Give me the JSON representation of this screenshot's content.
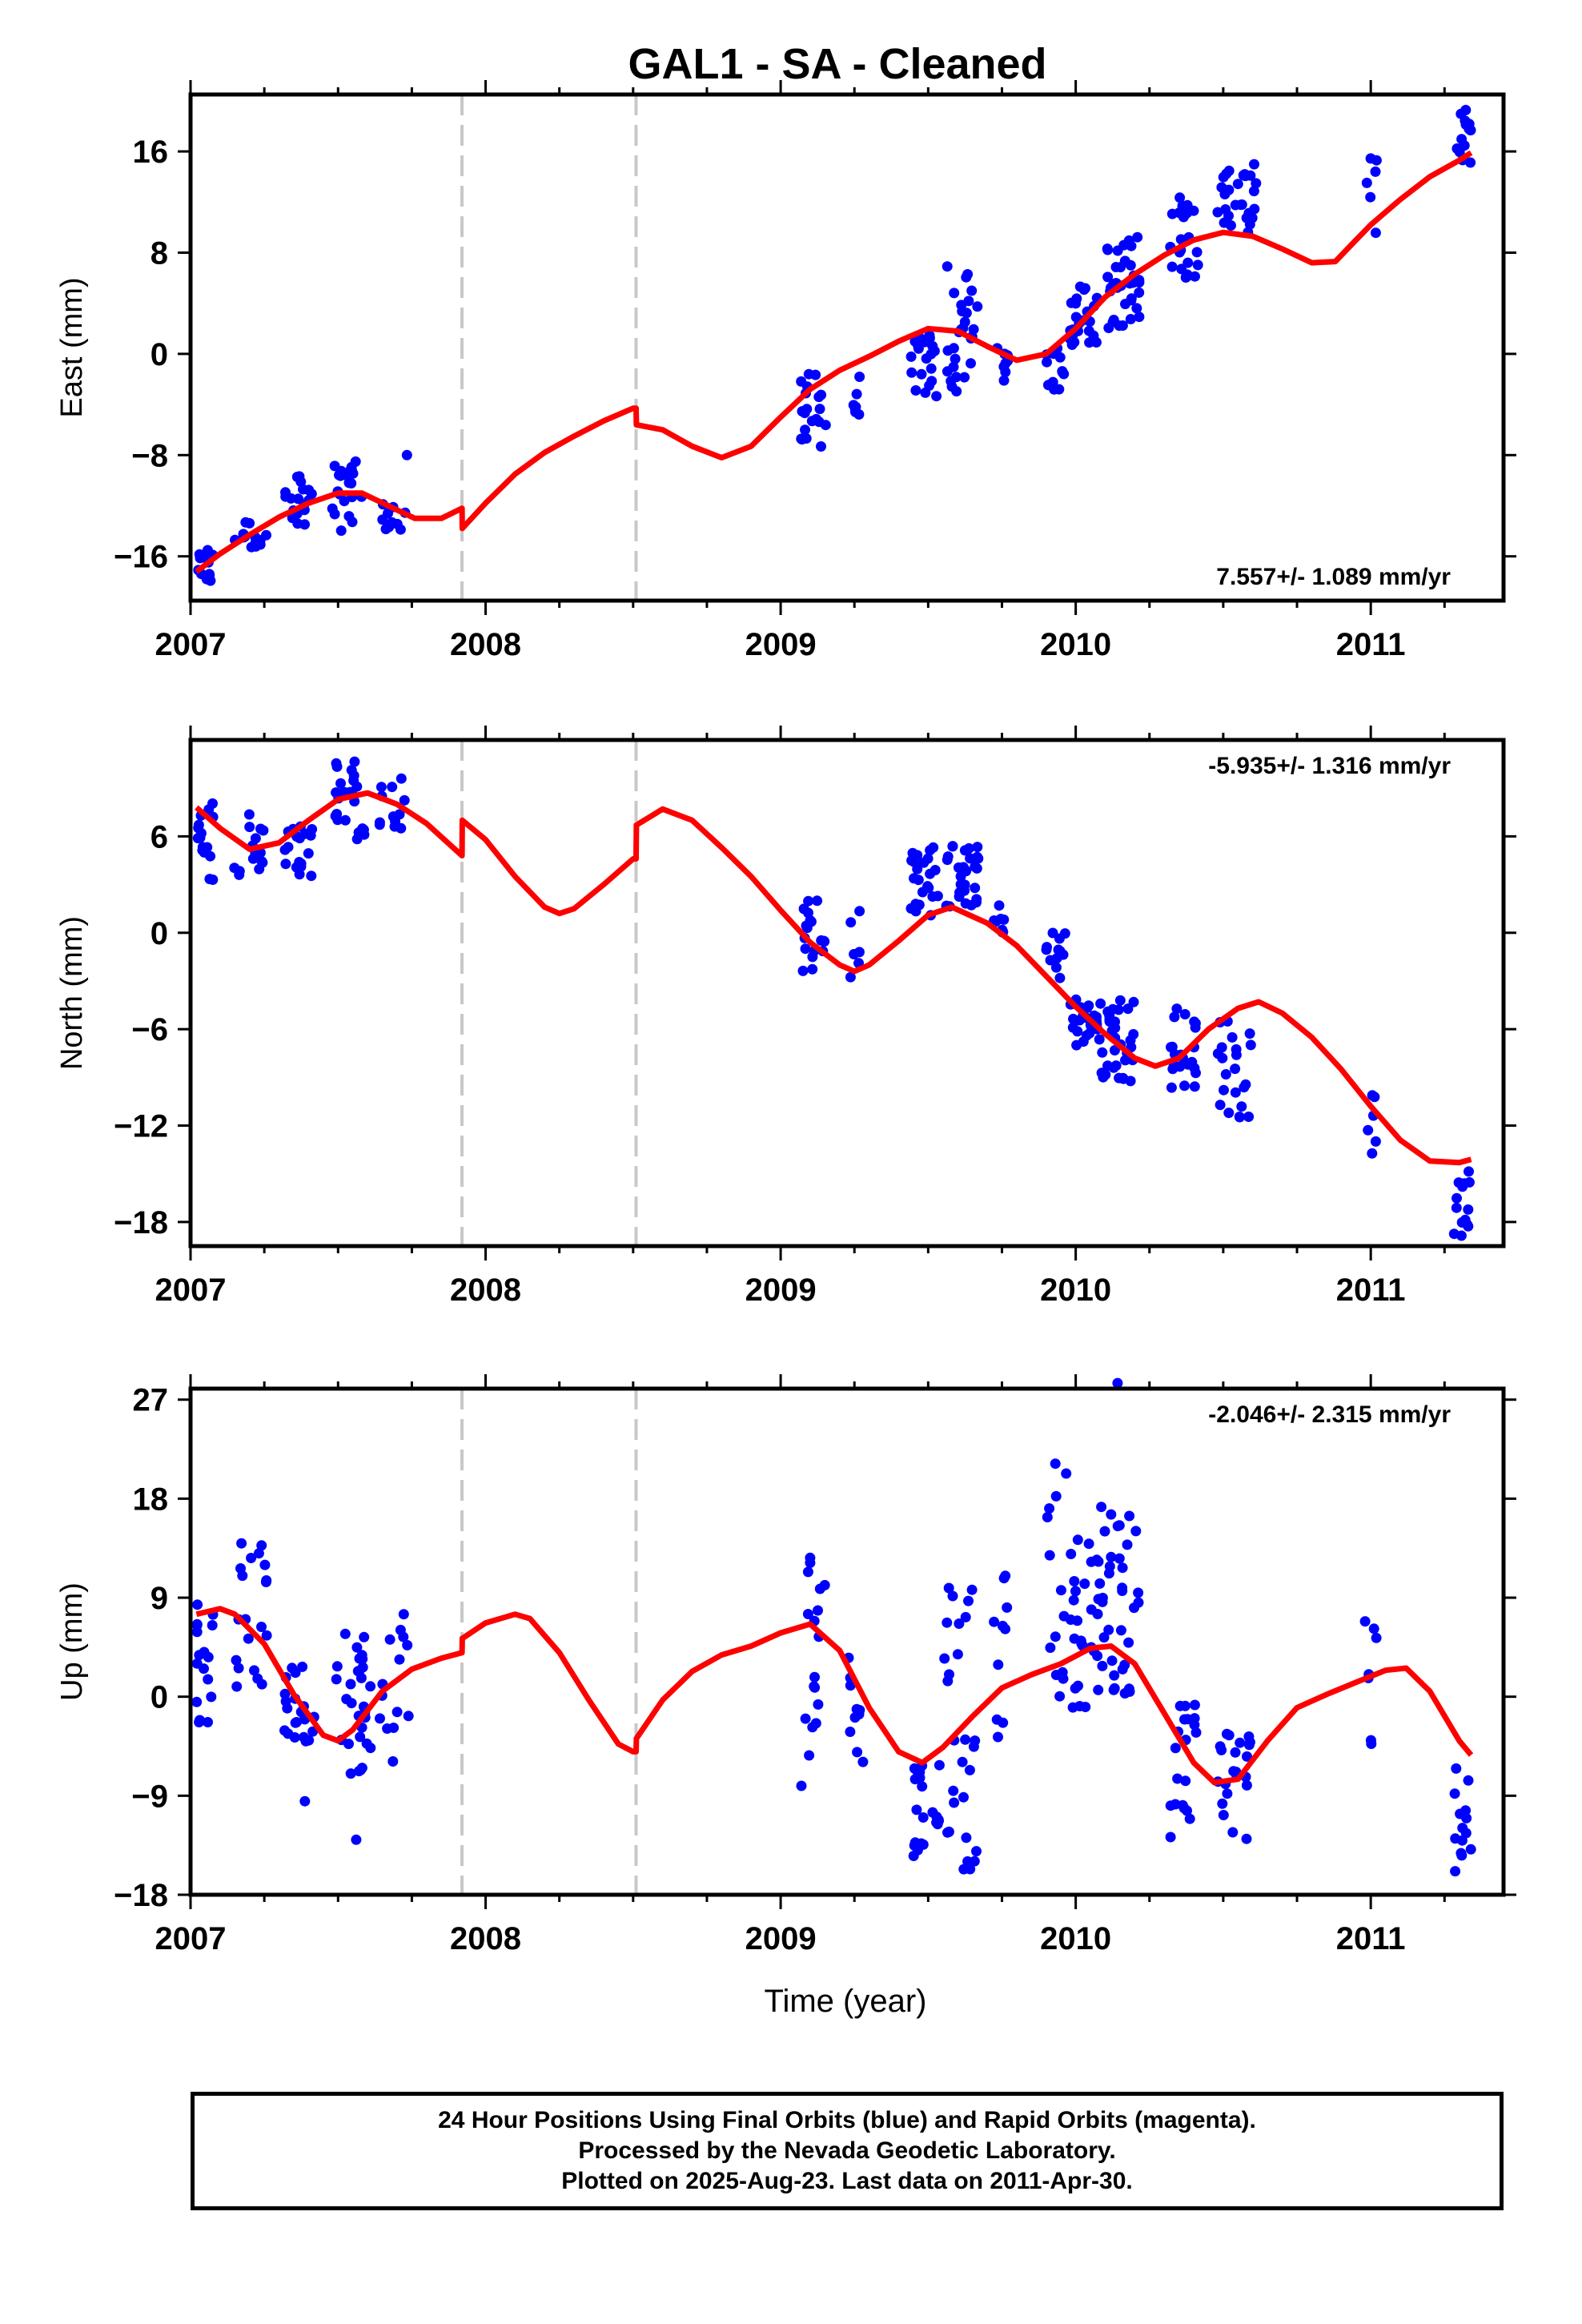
{
  "chart_data": {
    "type": "scatter",
    "title": "GAL1  - SA - Cleaned",
    "xlabel": "Time (year)",
    "xlim": [
      2007.0,
      2011.45
    ],
    "xticks": [
      "2007",
      "2008",
      "2009",
      "2010",
      "2011"
    ],
    "step_epochs": [
      2007.92,
      2008.51
    ],
    "model_color": "#ff0000",
    "point_color": "#0000ff",
    "panels": [
      {
        "name": "East",
        "ylabel": "East (mm)",
        "ylim": [
          -19.5,
          20.5
        ],
        "yticks": [
          "16",
          "8",
          "0",
          "-8",
          "-16"
        ],
        "rate_text": "7.557+/- 1.089 mm/yr",
        "rate_position": "bottom-right",
        "clusters": [
          {
            "x0": 2007.02,
            "x1": 2007.08,
            "y0": -18.5,
            "y1": -15.5,
            "n": 14
          },
          {
            "x0": 2007.13,
            "x1": 2007.26,
            "y0": -15.5,
            "y1": -13,
            "n": 14
          },
          {
            "x0": 2007.32,
            "x1": 2007.42,
            "y0": -13.5,
            "y1": -9.5,
            "n": 18
          },
          {
            "x0": 2007.48,
            "x1": 2007.58,
            "y0": -14,
            "y1": -8.5,
            "n": 22
          },
          {
            "x0": 2007.64,
            "x1": 2007.73,
            "y0": -15,
            "y1": -11.5,
            "n": 10
          },
          {
            "x0": 2007.73,
            "x1": 2007.74,
            "y0": -8,
            "y1": -8,
            "n": 1
          },
          {
            "x0": 2009.06,
            "x1": 2009.16,
            "y0": -7.5,
            "y1": -1.5,
            "n": 20
          },
          {
            "x0": 2009.23,
            "x1": 2009.27,
            "y0": -6,
            "y1": -1.5,
            "n": 7
          },
          {
            "x0": 2009.44,
            "x1": 2009.53,
            "y0": -3.5,
            "y1": 1.5,
            "n": 24
          },
          {
            "x0": 2009.56,
            "x1": 2009.67,
            "y0": -3,
            "y1": 7,
            "n": 28
          },
          {
            "x0": 2009.73,
            "x1": 2009.77,
            "y0": -2.5,
            "y1": 0.5,
            "n": 8
          },
          {
            "x0": 2009.9,
            "x1": 2009.96,
            "y0": -3,
            "y1": 0.5,
            "n": 12
          },
          {
            "x0": 2009.98,
            "x1": 2010.08,
            "y0": 0.5,
            "y1": 5.5,
            "n": 26
          },
          {
            "x0": 2010.09,
            "x1": 2010.22,
            "y0": 2,
            "y1": 9.5,
            "n": 36
          },
          {
            "x0": 2010.32,
            "x1": 2010.42,
            "y0": 6,
            "y1": 12.5,
            "n": 24
          },
          {
            "x0": 2010.48,
            "x1": 2010.62,
            "y0": 9.5,
            "y1": 15,
            "n": 28
          },
          {
            "x0": 2010.98,
            "x1": 2011.02,
            "y0": 9.5,
            "y1": 15.5,
            "n": 6
          },
          {
            "x0": 2011.28,
            "x1": 2011.34,
            "y0": 14.5,
            "y1": 19.5,
            "n": 14
          }
        ],
        "model": [
          [
            2007.02,
            -17.2
          ],
          [
            2007.1,
            -15.8
          ],
          [
            2007.2,
            -14.3
          ],
          [
            2007.3,
            -12.9
          ],
          [
            2007.4,
            -11.8
          ],
          [
            2007.5,
            -11.0
          ],
          [
            2007.58,
            -11.0
          ],
          [
            2007.67,
            -12.0
          ],
          [
            2007.76,
            -13.0
          ],
          [
            2007.85,
            -13.0
          ],
          [
            2007.92,
            -12.2
          ],
          [
            2007.921,
            -13.8
          ],
          [
            2008.0,
            -11.8
          ],
          [
            2008.1,
            -9.5
          ],
          [
            2008.2,
            -7.8
          ],
          [
            2008.3,
            -6.5
          ],
          [
            2008.4,
            -5.3
          ],
          [
            2008.5,
            -4.3
          ],
          [
            2008.51,
            -4.3
          ],
          [
            2008.511,
            -5.6
          ],
          [
            2008.6,
            -6.0
          ],
          [
            2008.7,
            -7.3
          ],
          [
            2008.8,
            -8.2
          ],
          [
            2008.9,
            -7.3
          ],
          [
            2009.0,
            -5.0
          ],
          [
            2009.1,
            -2.8
          ],
          [
            2009.2,
            -1.3
          ],
          [
            2009.3,
            -0.2
          ],
          [
            2009.4,
            1.0
          ],
          [
            2009.5,
            2.0
          ],
          [
            2009.6,
            1.8
          ],
          [
            2009.7,
            0.6
          ],
          [
            2009.8,
            -0.5
          ],
          [
            2009.9,
            0.0
          ],
          [
            2010.0,
            2.0
          ],
          [
            2010.1,
            4.5
          ],
          [
            2010.2,
            6.3
          ],
          [
            2010.3,
            7.8
          ],
          [
            2010.4,
            9.0
          ],
          [
            2010.5,
            9.6
          ],
          [
            2010.6,
            9.3
          ],
          [
            2010.7,
            8.3
          ],
          [
            2010.8,
            7.2
          ],
          [
            2010.88,
            7.3
          ],
          [
            2010.95,
            9.0
          ],
          [
            2011.0,
            10.2
          ],
          [
            2011.1,
            12.2
          ],
          [
            2011.2,
            14.0
          ],
          [
            2011.3,
            15.3
          ],
          [
            2011.34,
            15.9
          ]
        ]
      },
      {
        "name": "North",
        "ylabel": "North (mm)",
        "ylim": [
          -19.5,
          12.0
        ],
        "yticks": [
          "6",
          "0",
          "-6",
          "-12",
          "-18"
        ],
        "rate_text": "-5.935+/- 1.316 mm/yr",
        "rate_position": "top-right",
        "clusters": [
          {
            "x0": 2007.02,
            "x1": 2007.08,
            "y0": 3,
            "y1": 8.5,
            "n": 16
          },
          {
            "x0": 2007.14,
            "x1": 2007.25,
            "y0": 3.5,
            "y1": 7.5,
            "n": 16
          },
          {
            "x0": 2007.32,
            "x1": 2007.42,
            "y0": 3.5,
            "y1": 7,
            "n": 18
          },
          {
            "x0": 2007.49,
            "x1": 2007.6,
            "y0": 5.5,
            "y1": 11,
            "n": 24
          },
          {
            "x0": 2007.64,
            "x1": 2007.74,
            "y0": 6.5,
            "y1": 10,
            "n": 12
          },
          {
            "x0": 2009.07,
            "x1": 2009.15,
            "y0": -2.5,
            "y1": 2.5,
            "n": 18
          },
          {
            "x0": 2009.23,
            "x1": 2009.27,
            "y0": -3,
            "y1": 2.5,
            "n": 6
          },
          {
            "x0": 2009.44,
            "x1": 2009.54,
            "y0": 1,
            "y1": 5.5,
            "n": 24
          },
          {
            "x0": 2009.56,
            "x1": 2009.67,
            "y0": 1.5,
            "y1": 5.5,
            "n": 30
          },
          {
            "x0": 2009.72,
            "x1": 2009.77,
            "y0": -1.5,
            "y1": 2,
            "n": 8
          },
          {
            "x0": 2009.9,
            "x1": 2009.97,
            "y0": -3,
            "y1": 0.5,
            "n": 12
          },
          {
            "x0": 2009.98,
            "x1": 2010.08,
            "y0": -7,
            "y1": -4,
            "n": 24
          },
          {
            "x0": 2010.08,
            "x1": 2010.2,
            "y0": -9.5,
            "y1": -4,
            "n": 34
          },
          {
            "x0": 2010.32,
            "x1": 2010.41,
            "y0": -10,
            "y1": -4.5,
            "n": 22
          },
          {
            "x0": 2010.48,
            "x1": 2010.6,
            "y0": -11.5,
            "y1": -5,
            "n": 22
          },
          {
            "x0": 2010.98,
            "x1": 2011.02,
            "y0": -14,
            "y1": -10,
            "n": 6
          },
          {
            "x0": 2011.28,
            "x1": 2011.34,
            "y0": -19,
            "y1": -14.5,
            "n": 14
          }
        ],
        "model": [
          [
            2007.02,
            7.8
          ],
          [
            2007.1,
            6.5
          ],
          [
            2007.2,
            5.2
          ],
          [
            2007.3,
            5.6
          ],
          [
            2007.4,
            7.0
          ],
          [
            2007.5,
            8.3
          ],
          [
            2007.6,
            8.7
          ],
          [
            2007.7,
            8.0
          ],
          [
            2007.8,
            6.8
          ],
          [
            2007.92,
            4.8
          ],
          [
            2007.921,
            7.0
          ],
          [
            2008.0,
            5.8
          ],
          [
            2008.1,
            3.5
          ],
          [
            2008.2,
            1.6
          ],
          [
            2008.25,
            1.2
          ],
          [
            2008.3,
            1.5
          ],
          [
            2008.4,
            3.0
          ],
          [
            2008.5,
            4.6
          ],
          [
            2008.51,
            4.6
          ],
          [
            2008.511,
            6.7
          ],
          [
            2008.6,
            7.7
          ],
          [
            2008.7,
            7.0
          ],
          [
            2008.8,
            5.3
          ],
          [
            2008.9,
            3.5
          ],
          [
            2009.0,
            1.4
          ],
          [
            2009.1,
            -0.6
          ],
          [
            2009.2,
            -2.0
          ],
          [
            2009.25,
            -2.4
          ],
          [
            2009.3,
            -2.0
          ],
          [
            2009.4,
            -0.5
          ],
          [
            2009.5,
            1.1
          ],
          [
            2009.58,
            1.6
          ],
          [
            2009.7,
            0.6
          ],
          [
            2009.8,
            -0.8
          ],
          [
            2009.9,
            -2.7
          ],
          [
            2010.0,
            -4.6
          ],
          [
            2010.1,
            -6.3
          ],
          [
            2010.2,
            -7.8
          ],
          [
            2010.27,
            -8.3
          ],
          [
            2010.35,
            -7.8
          ],
          [
            2010.45,
            -6.0
          ],
          [
            2010.55,
            -4.7
          ],
          [
            2010.62,
            -4.3
          ],
          [
            2010.7,
            -5.0
          ],
          [
            2010.8,
            -6.5
          ],
          [
            2010.9,
            -8.5
          ],
          [
            2011.0,
            -10.8
          ],
          [
            2011.1,
            -12.9
          ],
          [
            2011.2,
            -14.2
          ],
          [
            2011.3,
            -14.3
          ],
          [
            2011.34,
            -14.1
          ]
        ]
      },
      {
        "name": "Up",
        "ylabel": "Up (mm)",
        "ylim": [
          -18.0,
          28.0
        ],
        "yticks": [
          "27",
          "18",
          "9",
          "0",
          "-9",
          "-18"
        ],
        "rate_text": "-2.046+/- 2.315 mm/yr",
        "rate_position": "top-right",
        "clusters": [
          {
            "x0": 2007.02,
            "x1": 2007.08,
            "y0": -2.5,
            "y1": 9,
            "n": 18
          },
          {
            "x0": 2007.14,
            "x1": 2007.26,
            "y0": 0.5,
            "y1": 14,
            "n": 20
          },
          {
            "x0": 2007.31,
            "x1": 2007.42,
            "y0": -4.5,
            "y1": 3,
            "n": 22
          },
          {
            "x0": 2007.48,
            "x1": 2007.61,
            "y0": -7,
            "y1": 7,
            "n": 30
          },
          {
            "x0": 2007.38,
            "x1": 2007.4,
            "y0": -9.5,
            "y1": -9.5,
            "n": 1
          },
          {
            "x0": 2007.56,
            "x1": 2007.58,
            "y0": -13,
            "y1": -13,
            "n": 1
          },
          {
            "x0": 2007.64,
            "x1": 2007.74,
            "y0": -7,
            "y1": 9,
            "n": 14
          },
          {
            "x0": 2009.07,
            "x1": 2009.15,
            "y0": -8.5,
            "y1": 14.5,
            "n": 18
          },
          {
            "x0": 2009.22,
            "x1": 2009.28,
            "y0": -6,
            "y1": 6.5,
            "n": 10
          },
          {
            "x0": 2009.44,
            "x1": 2009.54,
            "y0": -14.5,
            "y1": -5,
            "n": 22
          },
          {
            "x0": 2009.55,
            "x1": 2009.67,
            "y0": -16,
            "y1": 10,
            "n": 28
          },
          {
            "x0": 2009.72,
            "x1": 2009.77,
            "y0": -4,
            "y1": 11.5,
            "n": 10
          },
          {
            "x0": 2009.9,
            "x1": 2009.97,
            "y0": -1,
            "y1": 22,
            "n": 14
          },
          {
            "x0": 2009.98,
            "x1": 2010.08,
            "y0": -1,
            "y1": 15,
            "n": 28
          },
          {
            "x0": 2010.08,
            "x1": 2010.22,
            "y0": 0,
            "y1": 17.5,
            "n": 36
          },
          {
            "x0": 2010.13,
            "x1": 2010.15,
            "y0": 28.5,
            "y1": 28.5,
            "n": 1
          },
          {
            "x0": 2010.32,
            "x1": 2010.41,
            "y0": -14,
            "y1": 0,
            "n": 20
          },
          {
            "x0": 2010.48,
            "x1": 2010.6,
            "y0": -13.5,
            "y1": -2,
            "n": 22
          },
          {
            "x0": 2010.98,
            "x1": 2011.02,
            "y0": -4.5,
            "y1": 8.5,
            "n": 7
          },
          {
            "x0": 2011.28,
            "x1": 2011.34,
            "y0": -17.5,
            "y1": -4,
            "n": 14
          }
        ],
        "model": [
          [
            2007.02,
            7.5
          ],
          [
            2007.1,
            8.0
          ],
          [
            2007.15,
            7.5
          ],
          [
            2007.25,
            4.8
          ],
          [
            2007.35,
            0.2
          ],
          [
            2007.45,
            -3.5
          ],
          [
            2007.5,
            -4.0
          ],
          [
            2007.55,
            -3.0
          ],
          [
            2007.65,
            0.5
          ],
          [
            2007.75,
            2.5
          ],
          [
            2007.85,
            3.5
          ],
          [
            2007.92,
            4.0
          ],
          [
            2007.921,
            5.3
          ],
          [
            2008.0,
            6.7
          ],
          [
            2008.1,
            7.5
          ],
          [
            2008.15,
            7.1
          ],
          [
            2008.25,
            4.0
          ],
          [
            2008.35,
            -0.3
          ],
          [
            2008.45,
            -4.3
          ],
          [
            2008.5,
            -5.0
          ],
          [
            2008.51,
            -5.0
          ],
          [
            2008.511,
            -3.8
          ],
          [
            2008.6,
            -0.3
          ],
          [
            2008.7,
            2.3
          ],
          [
            2008.8,
            3.8
          ],
          [
            2008.9,
            4.6
          ],
          [
            2009.0,
            5.8
          ],
          [
            2009.1,
            6.6
          ],
          [
            2009.2,
            4.2
          ],
          [
            2009.3,
            -1.0
          ],
          [
            2009.4,
            -5.0
          ],
          [
            2009.48,
            -6.0
          ],
          [
            2009.55,
            -4.6
          ],
          [
            2009.65,
            -1.8
          ],
          [
            2009.75,
            0.8
          ],
          [
            2009.85,
            2.0
          ],
          [
            2009.95,
            3.0
          ],
          [
            2010.05,
            4.4
          ],
          [
            2010.12,
            4.6
          ],
          [
            2010.2,
            3.0
          ],
          [
            2010.3,
            -1.5
          ],
          [
            2010.4,
            -6.0
          ],
          [
            2010.47,
            -7.8
          ],
          [
            2010.55,
            -7.5
          ],
          [
            2010.65,
            -4.0
          ],
          [
            2010.75,
            -1.0
          ],
          [
            2010.85,
            0.2
          ],
          [
            2010.95,
            1.3
          ],
          [
            2011.05,
            2.4
          ],
          [
            2011.12,
            2.6
          ],
          [
            2011.2,
            0.5
          ],
          [
            2011.3,
            -4.0
          ],
          [
            2011.34,
            -5.3
          ]
        ]
      }
    ]
  },
  "footer": {
    "line1": "24 Hour Positions Using Final Orbits (blue) and Rapid Orbits (magenta).",
    "line2": "Processed by the Nevada Geodetic Laboratory.",
    "line3": "Plotted on 2025-Aug-23. Last data on 2011-Apr-30."
  }
}
